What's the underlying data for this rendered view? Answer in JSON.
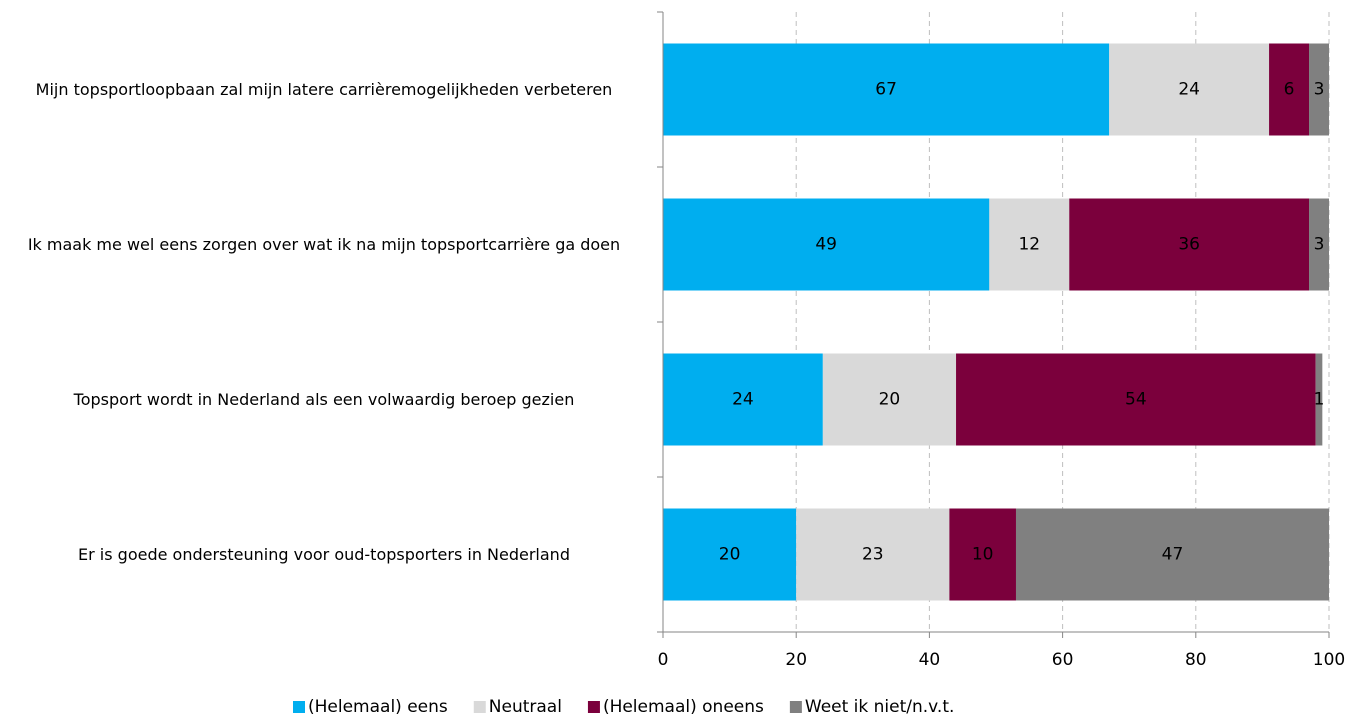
{
  "chart_data": {
    "type": "stacked_barh",
    "categories": [
      "Mijn topsportloopbaan zal mijn latere carrièremogelijkheden verbeteren",
      "Ik maak me wel eens zorgen over wat ik na mijn topsportcarrière ga doen",
      "Topsport wordt in Nederland als een volwaardig beroep gezien",
      "Er is goede ondersteuning voor oud-topsporters in Nederland"
    ],
    "series": [
      {
        "name": "(Helemaal) eens",
        "color": "#00aeef",
        "values": [
          67,
          49,
          24,
          20
        ]
      },
      {
        "name": "Neutraal",
        "color": "#d9d9d9",
        "values": [
          24,
          12,
          20,
          23
        ]
      },
      {
        "name": "(Helemaal) oneens",
        "color": "#7b003c",
        "values": [
          6,
          36,
          54,
          10
        ]
      },
      {
        "name": "Weet ik niet/n.v.t.",
        "color": "#808080",
        "values": [
          3,
          3,
          1,
          47
        ]
      }
    ],
    "xlim": [
      0,
      100
    ],
    "xticks": [
      0,
      20,
      40,
      60,
      80,
      100
    ],
    "grid": true,
    "legend": "bottom"
  }
}
